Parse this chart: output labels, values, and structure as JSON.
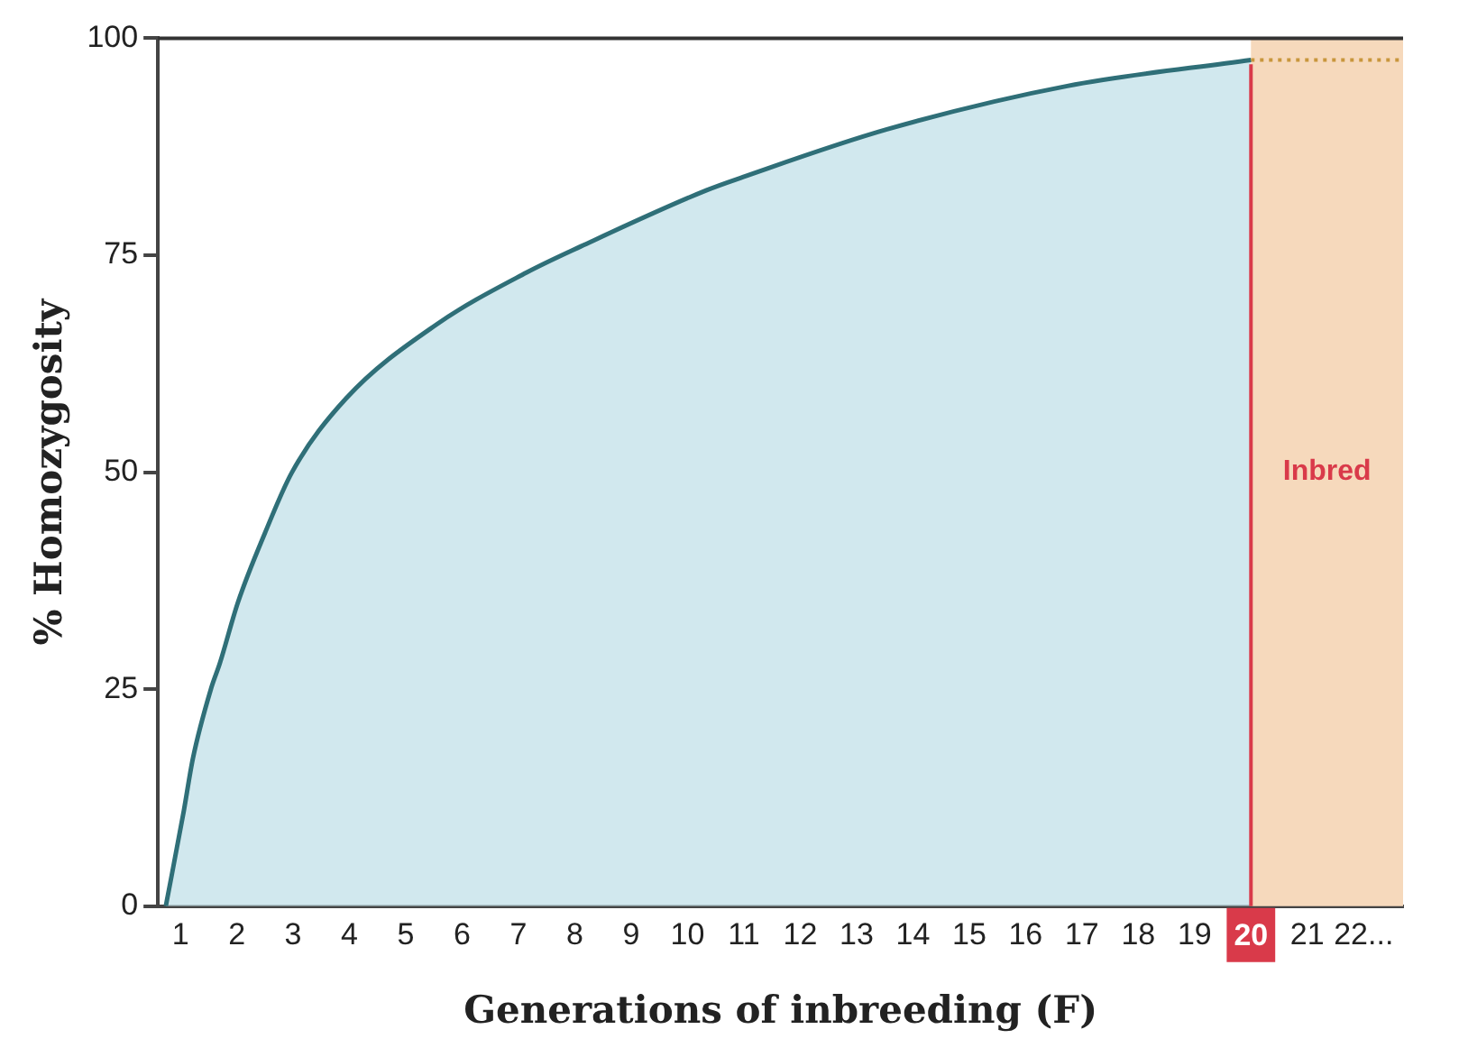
{
  "chart_data": {
    "type": "area",
    "xlabel": "Generations of inbreeding (F)",
    "ylabel": "% Homozygosity",
    "x": [
      0.74,
      1.06,
      1.22,
      1.54,
      1.7,
      2.02,
      2.5,
      2.98,
      3.94,
      5.54,
      7.14,
      8.1,
      10.34,
      10.98,
      13.54,
      16.74,
      20
    ],
    "series": [
      {
        "color": "#2f6f78",
        "values": [
          0,
          11,
          17,
          25,
          28,
          35,
          43,
          50,
          58.5,
          67,
          73,
          76,
          82.5,
          84,
          89.5,
          94.5,
          97.5
        ]
      },
      {
        "type": "line",
        "line_style": "dotted",
        "color": "#c8963c",
        "x": [
          20,
          22.7
        ],
        "values": [
          97.5,
          97.5
        ]
      }
    ],
    "xlim": [
      0.6,
      22.7
    ],
    "xticks": [
      1,
      2,
      3,
      4,
      5,
      6,
      7,
      8,
      9,
      10,
      11,
      12,
      13,
      14,
      15,
      16,
      17,
      18,
      19,
      20,
      21,
      {
        "value": 22,
        "label": "22..."
      }
    ],
    "ylim": [
      0,
      100
    ],
    "yticks": [
      0,
      25,
      50,
      75,
      100
    ],
    "ref_lines": [
      {
        "axis": "x",
        "value": 20,
        "color": "#d93a4a"
      }
    ],
    "bands": [
      {
        "axis": "x",
        "from": 20,
        "to": 22.7,
        "label": "Inbred",
        "color": "#f6d9bc"
      }
    ],
    "grid": false,
    "legend": false
  }
}
